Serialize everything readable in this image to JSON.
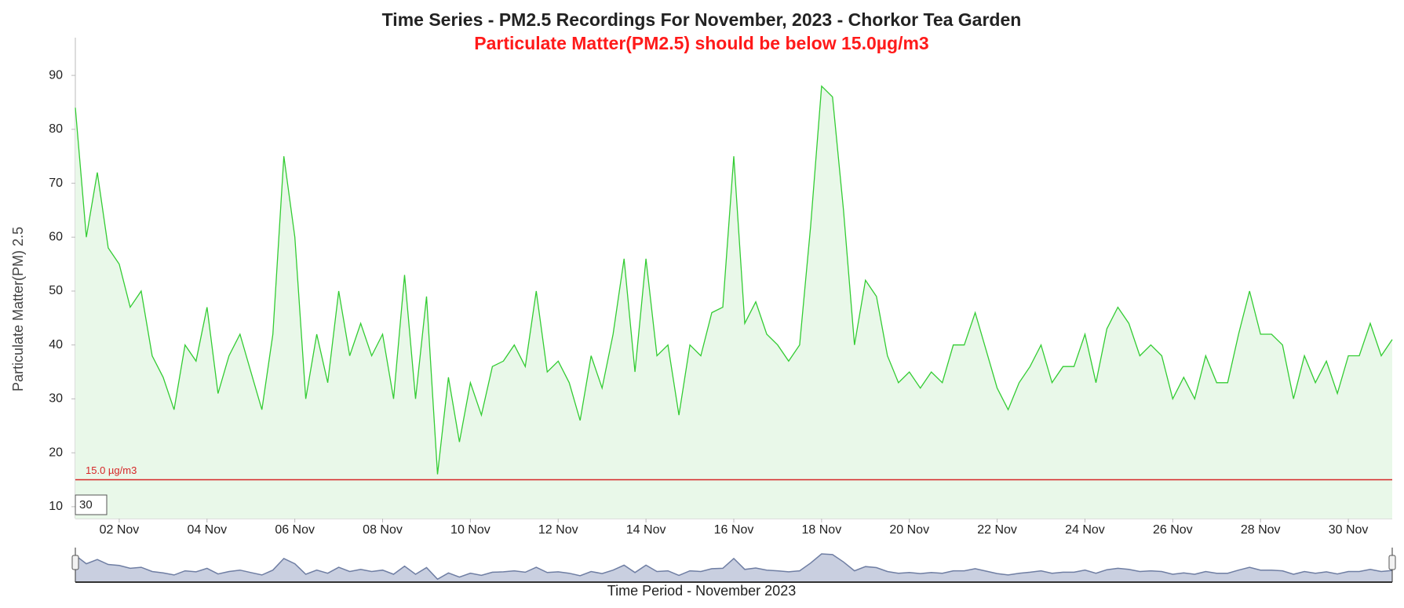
{
  "chart_data": {
    "type": "line",
    "title": "Time Series - PM2.5 Recordings For November, 2023 - Chorkor Tea Garden",
    "subtitle": "Particulate Matter(PM2.5) should be below 15.0µg/m3",
    "y_label": "Particulate Matter(PM) 2.5",
    "x_label": "Time Period - November 2023",
    "range_input": "30",
    "reference_line": {
      "value": 15,
      "label": "15.0 µg/m3",
      "color": "#d62728"
    },
    "xlim": [
      "2023-11-01T00:00",
      "2023-12-01T00:00"
    ],
    "ylim": [
      7.8,
      97
    ],
    "yticks": [
      10,
      20,
      30,
      40,
      50,
      60,
      70,
      80,
      90
    ],
    "xticks": [
      {
        "value": "2023-11-02T00:00",
        "label": "02 Nov"
      },
      {
        "value": "2023-11-04T00:00",
        "label": "04 Nov"
      },
      {
        "value": "2023-11-06T00:00",
        "label": "06 Nov"
      },
      {
        "value": "2023-11-08T00:00",
        "label": "08 Nov"
      },
      {
        "value": "2023-11-10T00:00",
        "label": "10 Nov"
      },
      {
        "value": "2023-11-12T00:00",
        "label": "12 Nov"
      },
      {
        "value": "2023-11-14T00:00",
        "label": "14 Nov"
      },
      {
        "value": "2023-11-16T00:00",
        "label": "16 Nov"
      },
      {
        "value": "2023-11-18T00:00",
        "label": "18 Nov"
      },
      {
        "value": "2023-11-20T00:00",
        "label": "20 Nov"
      },
      {
        "value": "2023-11-22T00:00",
        "label": "22 Nov"
      },
      {
        "value": "2023-11-24T00:00",
        "label": "24 Nov"
      },
      {
        "value": "2023-11-26T00:00",
        "label": "26 Nov"
      },
      {
        "value": "2023-11-28T00:00",
        "label": "28 Nov"
      },
      {
        "value": "2023-11-30T00:00",
        "label": "30 Nov"
      }
    ],
    "x": [
      "2023-11-01T00:00",
      "2023-11-01T06:00",
      "2023-11-01T12:00",
      "2023-11-01T18:00",
      "2023-11-02T00:00",
      "2023-11-02T06:00",
      "2023-11-02T12:00",
      "2023-11-02T18:00",
      "2023-11-03T00:00",
      "2023-11-03T06:00",
      "2023-11-03T12:00",
      "2023-11-03T18:00",
      "2023-11-04T00:00",
      "2023-11-04T06:00",
      "2023-11-04T12:00",
      "2023-11-04T18:00",
      "2023-11-05T00:00",
      "2023-11-05T06:00",
      "2023-11-05T12:00",
      "2023-11-05T18:00",
      "2023-11-06T00:00",
      "2023-11-06T06:00",
      "2023-11-06T12:00",
      "2023-11-06T18:00",
      "2023-11-07T00:00",
      "2023-11-07T06:00",
      "2023-11-07T12:00",
      "2023-11-07T18:00",
      "2023-11-08T00:00",
      "2023-11-08T06:00",
      "2023-11-08T12:00",
      "2023-11-08T18:00",
      "2023-11-09T00:00",
      "2023-11-09T06:00",
      "2023-11-09T12:00",
      "2023-11-09T18:00",
      "2023-11-10T00:00",
      "2023-11-10T06:00",
      "2023-11-10T12:00",
      "2023-11-10T18:00",
      "2023-11-11T00:00",
      "2023-11-11T06:00",
      "2023-11-11T12:00",
      "2023-11-11T18:00",
      "2023-11-12T00:00",
      "2023-11-12T06:00",
      "2023-11-12T12:00",
      "2023-11-12T18:00",
      "2023-11-13T00:00",
      "2023-11-13T06:00",
      "2023-11-13T12:00",
      "2023-11-13T18:00",
      "2023-11-14T00:00",
      "2023-11-14T06:00",
      "2023-11-14T12:00",
      "2023-11-14T18:00",
      "2023-11-15T00:00",
      "2023-11-15T06:00",
      "2023-11-15T12:00",
      "2023-11-15T18:00",
      "2023-11-16T00:00",
      "2023-11-16T06:00",
      "2023-11-16T12:00",
      "2023-11-16T18:00",
      "2023-11-17T00:00",
      "2023-11-17T06:00",
      "2023-11-17T12:00",
      "2023-11-17T18:00",
      "2023-11-18T00:00",
      "2023-11-18T06:00",
      "2023-11-18T12:00",
      "2023-11-18T18:00",
      "2023-11-19T00:00",
      "2023-11-19T06:00",
      "2023-11-19T12:00",
      "2023-11-19T18:00",
      "2023-11-20T00:00",
      "2023-11-20T06:00",
      "2023-11-20T12:00",
      "2023-11-20T18:00",
      "2023-11-21T00:00",
      "2023-11-21T06:00",
      "2023-11-21T12:00",
      "2023-11-21T18:00",
      "2023-11-22T00:00",
      "2023-11-22T06:00",
      "2023-11-22T12:00",
      "2023-11-22T18:00",
      "2023-11-23T00:00",
      "2023-11-23T06:00",
      "2023-11-23T12:00",
      "2023-11-23T18:00",
      "2023-11-24T00:00",
      "2023-11-24T06:00",
      "2023-11-24T12:00",
      "2023-11-24T18:00",
      "2023-11-25T00:00",
      "2023-11-25T06:00",
      "2023-11-25T12:00",
      "2023-11-25T18:00",
      "2023-11-26T00:00",
      "2023-11-26T06:00",
      "2023-11-26T12:00",
      "2023-11-26T18:00",
      "2023-11-27T00:00",
      "2023-11-27T06:00",
      "2023-11-27T12:00",
      "2023-11-27T18:00",
      "2023-11-28T00:00",
      "2023-11-28T06:00",
      "2023-11-28T12:00",
      "2023-11-28T18:00",
      "2023-11-29T00:00",
      "2023-11-29T06:00",
      "2023-11-29T12:00",
      "2023-11-29T18:00",
      "2023-11-30T00:00",
      "2023-11-30T06:00",
      "2023-11-30T12:00",
      "2023-11-30T18:00",
      "2023-12-01T00:00"
    ],
    "series": [
      {
        "color": "#33cc33",
        "fill": "#e9f8e9",
        "values": [
          84,
          60,
          72,
          58,
          55,
          47,
          50,
          38,
          34,
          28,
          40,
          37,
          47,
          31,
          38,
          42,
          35,
          28,
          42,
          75,
          60,
          30,
          42,
          33,
          50,
          38,
          44,
          38,
          42,
          30,
          53,
          30,
          49,
          16,
          34,
          22,
          33,
          27,
          36,
          37,
          40,
          36,
          50,
          35,
          37,
          33,
          26,
          38,
          32,
          42,
          56,
          35,
          56,
          38,
          40,
          27,
          40,
          38,
          46,
          47,
          75,
          44,
          48,
          42,
          40,
          37,
          40,
          62,
          88,
          86,
          65,
          40,
          52,
          49,
          38,
          33,
          35,
          32,
          35,
          33,
          40,
          40,
          46,
          39,
          32,
          28,
          33,
          36,
          40,
          33,
          36,
          36,
          42,
          33,
          43,
          47,
          44,
          38,
          40,
          38,
          30,
          34,
          30,
          38,
          33,
          33,
          42,
          50,
          42,
          42,
          40,
          30,
          38,
          33,
          37,
          31,
          38,
          38,
          44,
          38,
          41
        ]
      }
    ]
  }
}
